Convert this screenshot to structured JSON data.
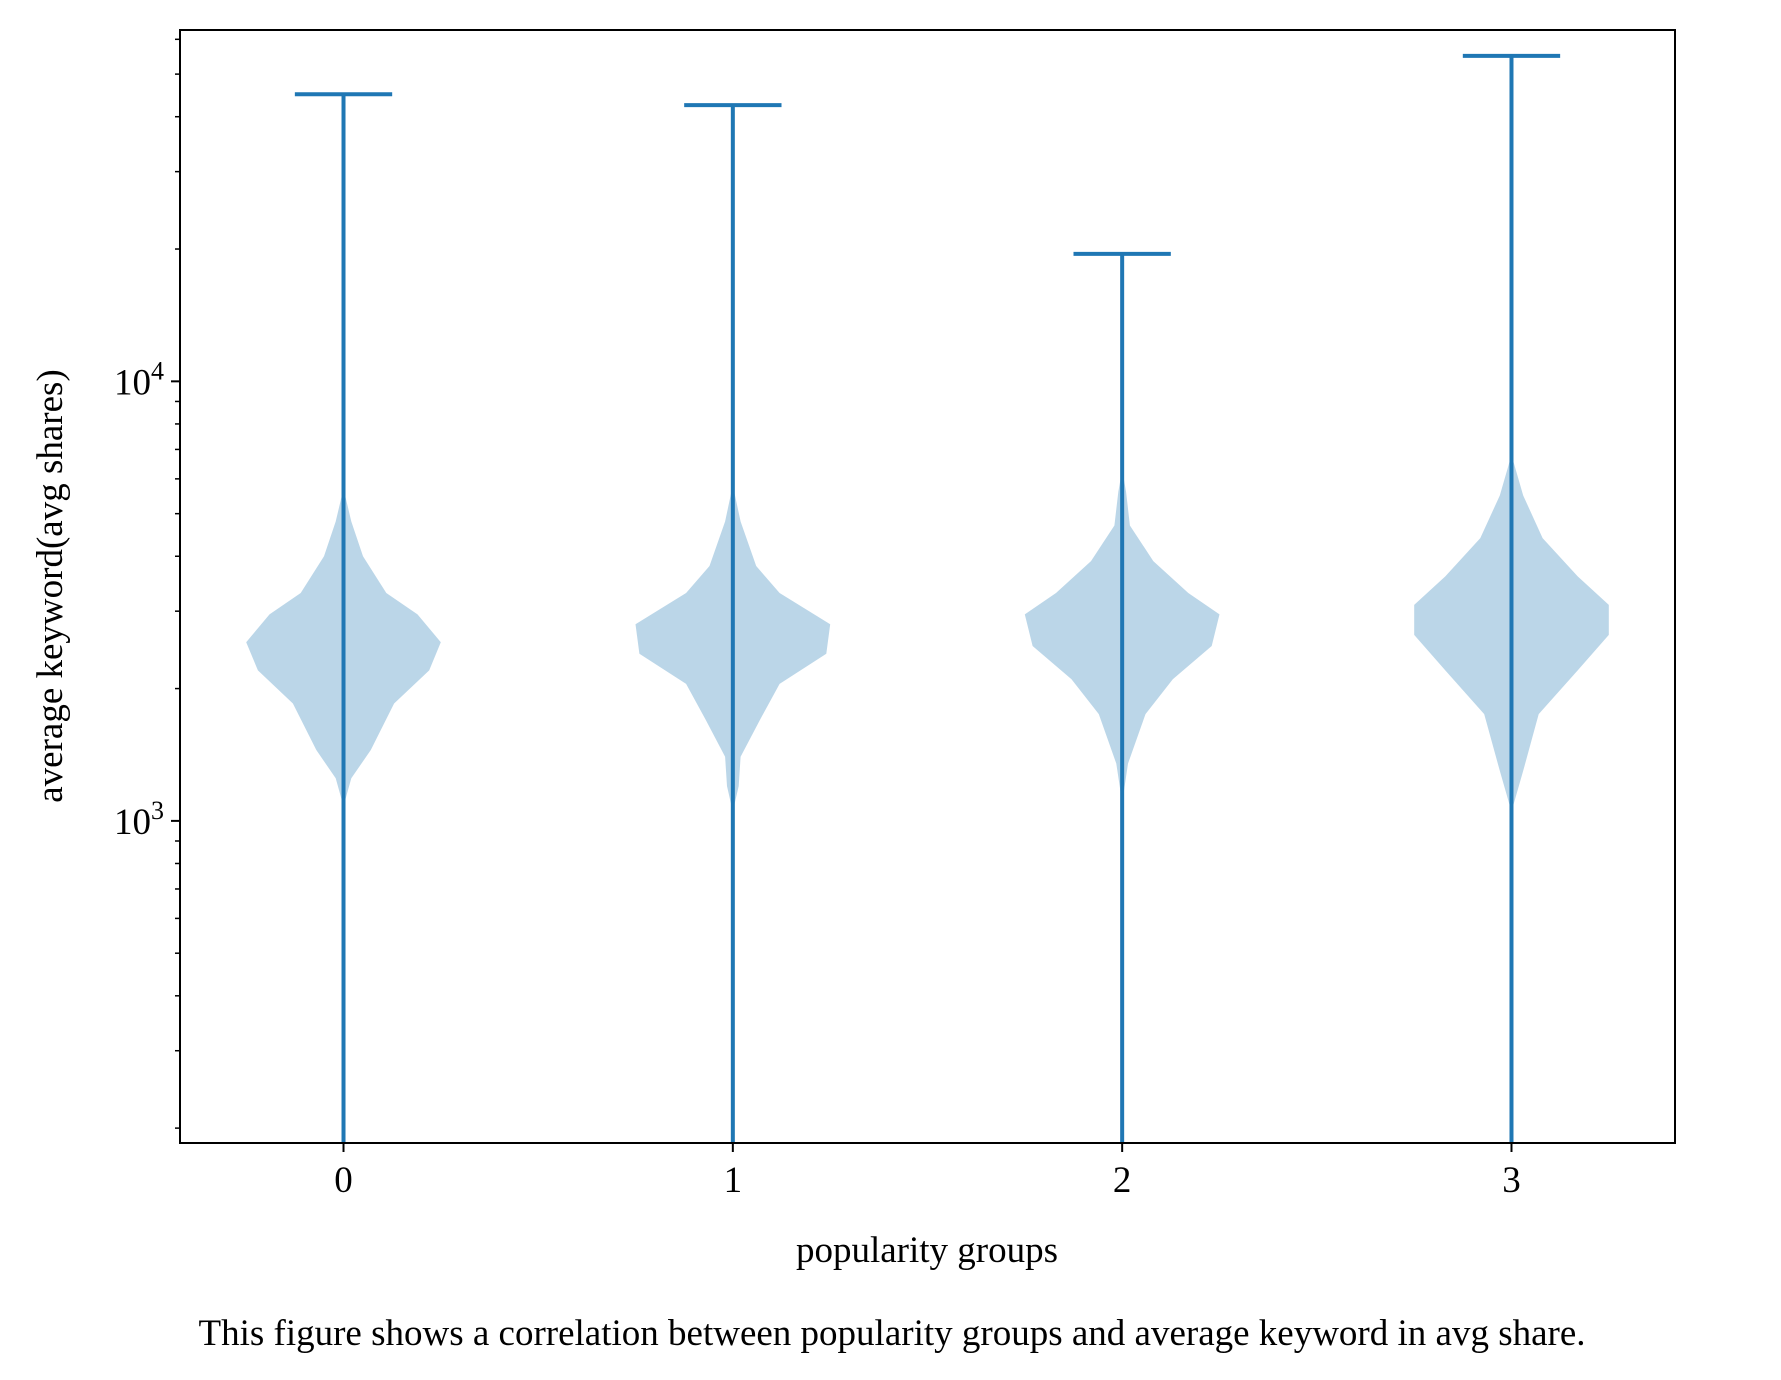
{
  "chart_data": {
    "type": "violin",
    "title": "",
    "xlabel": "popularity groups",
    "ylabel": "average keyword(avg shares)",
    "caption": "This figure shows a correlation between popularity groups and average keyword in avg share.",
    "yscale": "log",
    "ylim": [
      185,
      63000
    ],
    "xlim": [
      -0.42,
      3.42
    ],
    "grid": false,
    "legend": "none",
    "colors": {
      "line": "#1f77b4",
      "fill": "#1f77b4",
      "fill_opacity": 0.3,
      "axis": "#000000"
    },
    "categories": [
      "0",
      "1",
      "2",
      "3"
    ],
    "y_ticks": [
      {
        "value": 1000,
        "base": "10",
        "exp": "3"
      },
      {
        "value": 10000,
        "base": "10",
        "exp": "4"
      }
    ],
    "series": [
      {
        "group": 0,
        "min": 185,
        "max": 45000,
        "profile": [
          {
            "y": 1080,
            "w": 0.0
          },
          {
            "y": 1250,
            "w": 0.02
          },
          {
            "y": 1450,
            "w": 0.07
          },
          {
            "y": 1850,
            "w": 0.13
          },
          {
            "y": 2200,
            "w": 0.22
          },
          {
            "y": 2550,
            "w": 0.25
          },
          {
            "y": 2950,
            "w": 0.19
          },
          {
            "y": 3300,
            "w": 0.11
          },
          {
            "y": 4000,
            "w": 0.05
          },
          {
            "y": 4800,
            "w": 0.02
          },
          {
            "y": 5700,
            "w": 0.0
          }
        ]
      },
      {
        "group": 1,
        "min": 185,
        "max": 42500,
        "profile": [
          {
            "y": 1050,
            "w": 0.0
          },
          {
            "y": 1200,
            "w": 0.015
          },
          {
            "y": 1400,
            "w": 0.02
          },
          {
            "y": 1700,
            "w": 0.07
          },
          {
            "y": 2050,
            "w": 0.12
          },
          {
            "y": 2400,
            "w": 0.24
          },
          {
            "y": 2800,
            "w": 0.25
          },
          {
            "y": 3300,
            "w": 0.12
          },
          {
            "y": 3800,
            "w": 0.06
          },
          {
            "y": 4800,
            "w": 0.02
          },
          {
            "y": 5800,
            "w": 0.0
          }
        ]
      },
      {
        "group": 2,
        "min": 185,
        "max": 19500,
        "profile": [
          {
            "y": 1100,
            "w": 0.0
          },
          {
            "y": 1350,
            "w": 0.015
          },
          {
            "y": 1750,
            "w": 0.06
          },
          {
            "y": 2100,
            "w": 0.13
          },
          {
            "y": 2500,
            "w": 0.23
          },
          {
            "y": 2950,
            "w": 0.25
          },
          {
            "y": 3300,
            "w": 0.17
          },
          {
            "y": 3900,
            "w": 0.08
          },
          {
            "y": 4700,
            "w": 0.02
          },
          {
            "y": 5600,
            "w": 0.01
          },
          {
            "y": 6300,
            "w": 0.0
          }
        ]
      },
      {
        "group": 3,
        "min": 185,
        "max": 55000,
        "profile": [
          {
            "y": 1050,
            "w": 0.0
          },
          {
            "y": 1300,
            "w": 0.03
          },
          {
            "y": 1750,
            "w": 0.07
          },
          {
            "y": 2200,
            "w": 0.17
          },
          {
            "y": 2650,
            "w": 0.25
          },
          {
            "y": 3100,
            "w": 0.25
          },
          {
            "y": 3600,
            "w": 0.17
          },
          {
            "y": 4400,
            "w": 0.08
          },
          {
            "y": 5500,
            "w": 0.03
          },
          {
            "y": 6800,
            "w": 0.0
          }
        ]
      }
    ]
  }
}
